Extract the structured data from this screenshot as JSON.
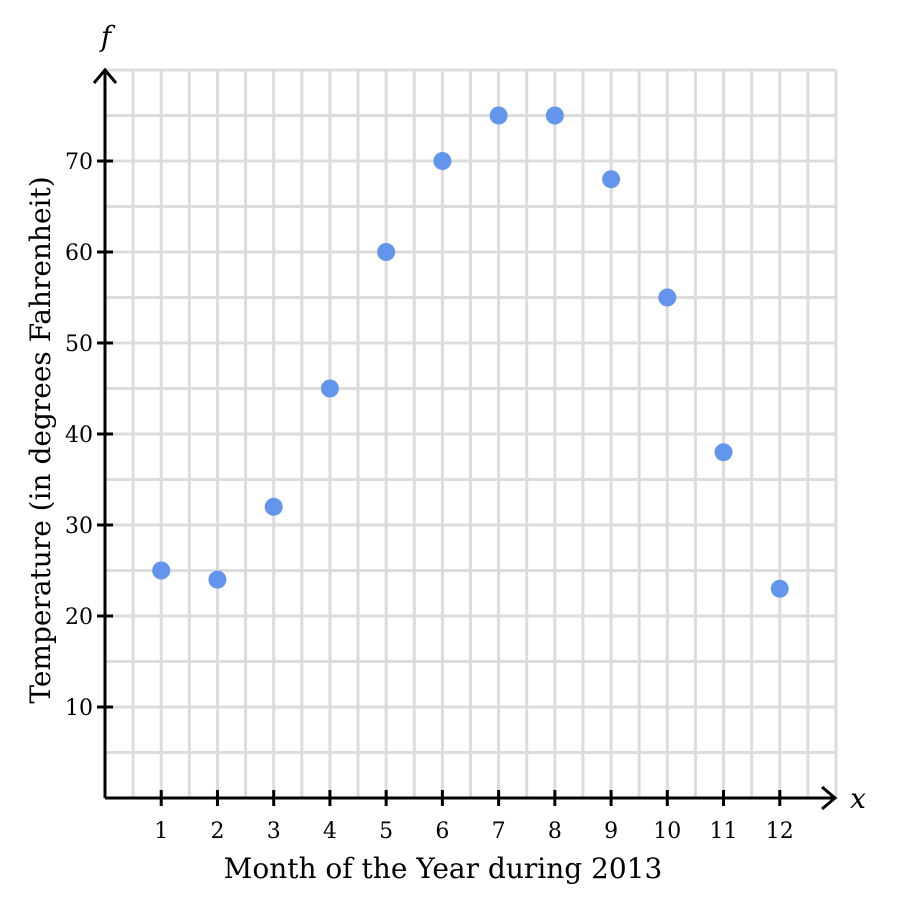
{
  "chart_data": {
    "type": "scatter",
    "xlabel": "Month of the Year during 2013",
    "ylabel": "Temperature (in degrees Fahrenheit)",
    "x_axis_symbol": "x",
    "y_axis_symbol": "f",
    "x": [
      1,
      2,
      3,
      4,
      5,
      6,
      7,
      8,
      9,
      10,
      11,
      12
    ],
    "y": [
      25,
      24,
      32,
      45,
      60,
      70,
      75,
      75,
      68,
      55,
      38,
      23
    ],
    "xlim": [
      0,
      13
    ],
    "ylim": [
      0,
      80
    ],
    "x_ticks": [
      1,
      2,
      3,
      4,
      5,
      6,
      7,
      8,
      9,
      10,
      11,
      12
    ],
    "y_ticks": [
      10,
      20,
      30,
      40,
      50,
      60,
      70
    ],
    "grid": true,
    "point_color": "#6495ED"
  }
}
